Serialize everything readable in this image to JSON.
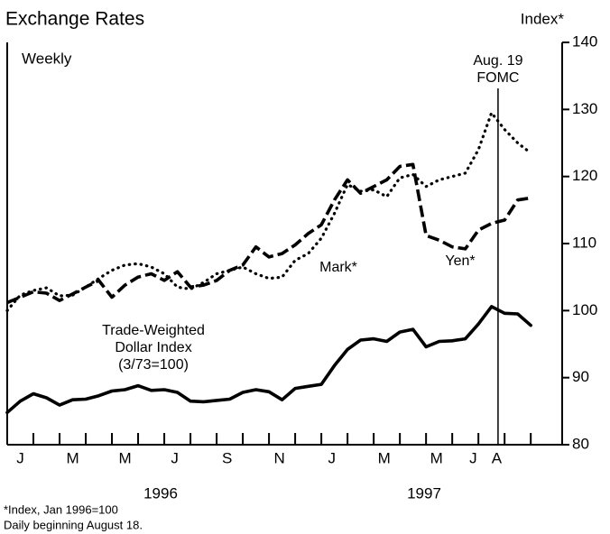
{
  "chart_data": {
    "type": "line",
    "title": "Exchange Rates",
    "y_axis_label": "Index*",
    "x": [
      0,
      0.5,
      1,
      1.5,
      2,
      2.5,
      3,
      3.5,
      4,
      4.5,
      5,
      5.5,
      6,
      6.5,
      7,
      7.5,
      8,
      8.5,
      9,
      9.5,
      10,
      10.5,
      11,
      11.5,
      12,
      12.5,
      13,
      13.5,
      14,
      14.5,
      15,
      15.5,
      16,
      16.5,
      17,
      17.5,
      18,
      18.5,
      19,
      19.5,
      20
    ],
    "xlim": [
      0,
      21.2
    ],
    "xticks": [
      {
        "value": 0.5,
        "label": "J"
      },
      {
        "value": 2.5,
        "label": "M"
      },
      {
        "value": 4.5,
        "label": "M"
      },
      {
        "value": 6.4,
        "label": "J"
      },
      {
        "value": 8.4,
        "label": "S"
      },
      {
        "value": 10.4,
        "label": "N"
      },
      {
        "value": 12.4,
        "label": "J"
      },
      {
        "value": 14.4,
        "label": "M"
      },
      {
        "value": 16.4,
        "label": "M"
      },
      {
        "value": 17.8,
        "label": "J"
      },
      {
        "value": 18.7,
        "label": "A"
      }
    ],
    "x_minor_ticks": [
      1,
      2,
      3,
      4,
      5,
      6,
      7,
      8,
      9,
      10,
      11,
      12,
      13,
      14,
      15,
      16,
      17,
      18,
      19,
      20
    ],
    "year_labels": [
      "1996",
      "1997"
    ],
    "ylim": [
      80,
      140
    ],
    "yticks": [
      80,
      90,
      100,
      110,
      120,
      130,
      140
    ],
    "series": [
      {
        "name": "Mark*",
        "color": "#000000",
        "style": "dotted",
        "values": [
          100.0,
          102.3,
          103.0,
          103.4,
          102.2,
          102.3,
          103.5,
          104.8,
          106.0,
          106.8,
          107.0,
          106.5,
          105.5,
          103.5,
          103.2,
          104.2,
          105.5,
          106.0,
          106.5,
          105.5,
          104.8,
          105.0,
          107.5,
          108.5,
          110.8,
          114.5,
          118.8,
          117.8,
          118.0,
          117.0,
          119.8,
          120.3,
          118.5,
          119.5,
          120.0,
          120.5,
          124.0,
          129.5,
          127.0,
          125.0,
          123.5
        ]
      },
      {
        "name": "Yen*",
        "color": "#000000",
        "style": "dashed",
        "values": [
          101.2,
          102.0,
          102.8,
          102.6,
          101.5,
          102.5,
          103.5,
          104.5,
          102.0,
          103.8,
          105.0,
          105.5,
          104.5,
          105.8,
          103.5,
          103.8,
          104.5,
          106.0,
          106.8,
          109.5,
          108.0,
          108.5,
          109.8,
          111.5,
          112.8,
          116.5,
          119.5,
          117.5,
          118.5,
          119.5,
          121.5,
          121.8,
          111.2,
          110.5,
          109.5,
          109.2,
          112.0,
          113.0,
          113.5,
          116.5,
          116.8
        ]
      },
      {
        "name": "Trade-Weighted Dollar Index (3/73=100)",
        "color": "#000000",
        "style": "solid",
        "values": [
          84.8,
          86.5,
          87.6,
          87.0,
          85.9,
          86.7,
          86.8,
          87.3,
          88.0,
          88.2,
          88.8,
          88.1,
          88.2,
          87.8,
          86.5,
          86.4,
          86.6,
          86.8,
          87.8,
          88.2,
          87.9,
          86.7,
          88.4,
          88.7,
          89.0,
          91.8,
          94.2,
          95.6,
          95.8,
          95.4,
          96.8,
          97.2,
          94.6,
          95.4,
          95.5,
          95.8,
          98.0,
          100.6,
          99.6,
          99.5,
          97.8
        ]
      }
    ],
    "annotations": [
      {
        "text": "Weekly"
      },
      {
        "text": "Aug. 19 FOMC",
        "x": 18.75
      }
    ],
    "footnotes": [
      "*Index, Jan 1996=100",
      "Daily beginning August 18."
    ]
  }
}
